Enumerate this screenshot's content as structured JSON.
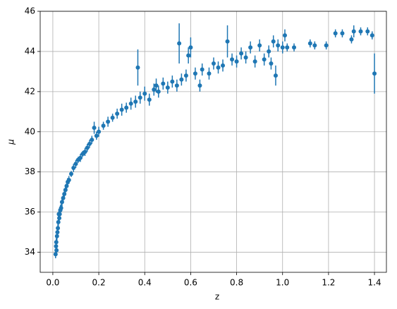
{
  "chart_data": {
    "type": "scatter",
    "xlabel": "z",
    "ylabel": "μ",
    "color": "#1f77b4",
    "grid": true,
    "xlim": [
      -0.055,
      1.452
    ],
    "ylim": [
      33,
      46
    ],
    "xticks": [
      {
        "value": 0,
        "label": "0.0"
      },
      0.2,
      0.4,
      0.6,
      0.8,
      {
        "value": 1,
        "label": "1.0"
      },
      1.2,
      1.4
    ],
    "yticks": [
      34,
      36,
      38,
      40,
      42,
      44,
      46
    ],
    "x": [
      0.012,
      0.014,
      0.015,
      0.016,
      0.018,
      0.02,
      0.022,
      0.024,
      0.026,
      0.028,
      0.03,
      0.033,
      0.036,
      0.04,
      0.045,
      0.05,
      0.055,
      0.06,
      0.065,
      0.07,
      0.08,
      0.09,
      0.1,
      0.11,
      0.12,
      0.13,
      0.14,
      0.15,
      0.16,
      0.17,
      0.18,
      0.19,
      0.2,
      0.22,
      0.24,
      0.26,
      0.28,
      0.3,
      0.32,
      0.34,
      0.36,
      0.37,
      0.38,
      0.4,
      0.42,
      0.44,
      0.45,
      0.46,
      0.48,
      0.5,
      0.52,
      0.54,
      0.55,
      0.56,
      0.58,
      0.59,
      0.6,
      0.62,
      0.64,
      0.65,
      0.68,
      0.7,
      0.72,
      0.74,
      0.76,
      0.78,
      0.8,
      0.82,
      0.84,
      0.86,
      0.88,
      0.9,
      0.92,
      0.94,
      0.95,
      0.96,
      0.97,
      0.98,
      1.0,
      1.01,
      1.02,
      1.05,
      1.12,
      1.14,
      1.19,
      1.23,
      1.26,
      1.3,
      1.31,
      1.34,
      1.37,
      1.39,
      1.4
    ],
    "values": [
      33.9,
      34.3,
      34.5,
      34.1,
      34.8,
      35.0,
      35.2,
      35.5,
      35.9,
      35.7,
      35.9,
      36.1,
      36.2,
      36.5,
      36.7,
      36.9,
      37.1,
      37.3,
      37.5,
      37.6,
      37.9,
      38.2,
      38.4,
      38.6,
      38.7,
      38.9,
      39.0,
      39.2,
      39.4,
      39.6,
      40.2,
      39.8,
      40.0,
      40.3,
      40.5,
      40.7,
      40.9,
      41.1,
      41.2,
      41.4,
      41.5,
      43.2,
      41.7,
      41.9,
      41.6,
      42.1,
      42.3,
      42.0,
      42.4,
      42.2,
      42.5,
      42.3,
      44.4,
      42.6,
      42.8,
      43.8,
      44.2,
      42.9,
      42.3,
      43.1,
      42.9,
      43.4,
      43.2,
      43.3,
      44.5,
      43.6,
      43.5,
      43.9,
      43.7,
      44.2,
      43.5,
      44.3,
      43.6,
      44.0,
      43.4,
      44.5,
      42.8,
      44.3,
      44.2,
      44.8,
      44.2,
      44.2,
      44.4,
      44.3,
      44.3,
      44.9,
      44.9,
      44.6,
      45.0,
      45.0,
      45.0,
      44.8,
      42.9
    ],
    "errors": [
      0.2,
      0.2,
      0.2,
      0.25,
      0.2,
      0.25,
      0.2,
      0.3,
      0.25,
      0.2,
      0.2,
      0.25,
      0.2,
      0.25,
      0.2,
      0.2,
      0.2,
      0.25,
      0.2,
      0.2,
      0.15,
      0.2,
      0.2,
      0.15,
      0.2,
      0.15,
      0.2,
      0.2,
      0.2,
      0.2,
      0.3,
      0.2,
      0.25,
      0.2,
      0.25,
      0.2,
      0.25,
      0.3,
      0.25,
      0.3,
      0.3,
      0.9,
      0.3,
      0.35,
      0.3,
      0.3,
      0.35,
      0.3,
      0.3,
      0.3,
      0.3,
      0.3,
      1.0,
      0.3,
      0.3,
      0.4,
      0.5,
      0.3,
      0.3,
      0.3,
      0.3,
      0.3,
      0.3,
      0.3,
      0.8,
      0.3,
      0.3,
      0.3,
      0.3,
      0.3,
      0.3,
      0.3,
      0.3,
      0.3,
      0.3,
      0.3,
      0.5,
      0.3,
      0.3,
      0.3,
      0.2,
      0.2,
      0.2,
      0.2,
      0.2,
      0.2,
      0.2,
      0.2,
      0.3,
      0.2,
      0.2,
      0.2,
      1.0
    ]
  }
}
